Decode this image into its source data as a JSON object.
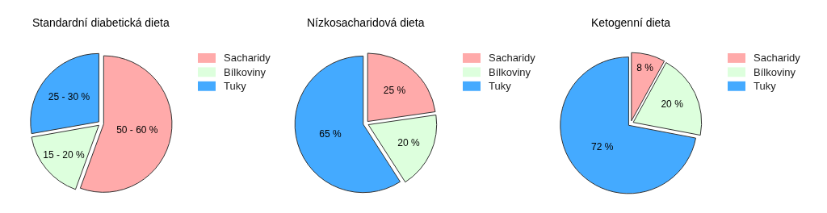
{
  "chart_data": [
    {
      "type": "pie",
      "title": "Standardní diabetická dieta",
      "categories": [
        "Sacharidy",
        "Bílkoviny",
        "Tuky"
      ],
      "values": [
        50,
        15,
        25
      ],
      "value_labels": [
        "50 - 60 %",
        "15 - 20 %",
        "25 - 30 %"
      ],
      "colors": [
        "#ffaaaa",
        "#ddffdd",
        "#44aaff"
      ],
      "legend": "right"
    },
    {
      "type": "pie",
      "title": "Nízkosacharidová dieta",
      "categories": [
        "Sacharidy",
        "Bílkoviny",
        "Tuky"
      ],
      "values": [
        25,
        20,
        65
      ],
      "value_labels": [
        "25 %",
        "20 %",
        "65 %"
      ],
      "colors": [
        "#ffaaaa",
        "#ddffdd",
        "#44aaff"
      ],
      "legend": "right"
    },
    {
      "type": "pie",
      "title": "Ketogenní dieta",
      "categories": [
        "Sacharidy",
        "Bílkoviny",
        "Tuky"
      ],
      "values": [
        8,
        20,
        72
      ],
      "value_labels": [
        "8 %",
        "20 %",
        "72 %"
      ],
      "colors": [
        "#ffaaaa",
        "#ddffdd",
        "#44aaff"
      ],
      "legend": "right"
    }
  ]
}
